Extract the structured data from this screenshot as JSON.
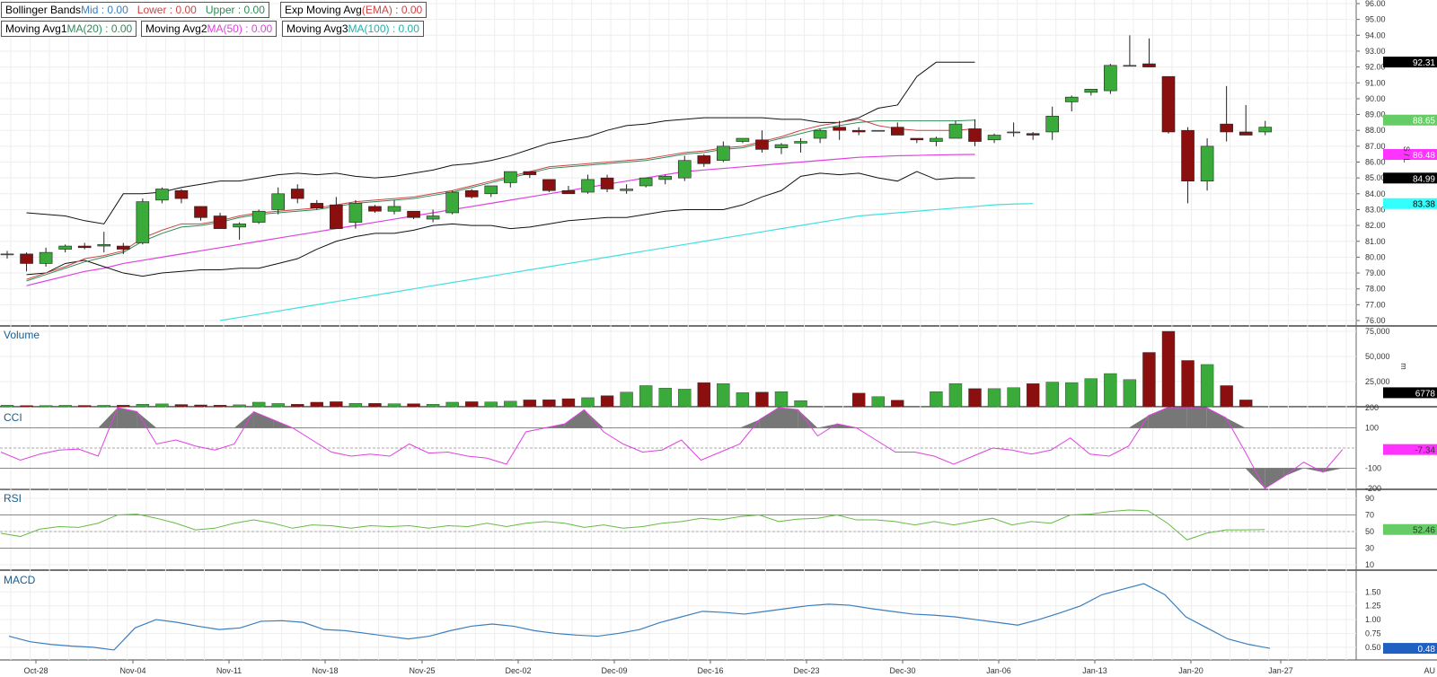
{
  "legends": {
    "bb": {
      "label": "Bollinger Bands",
      "mid": "Mid : 0.00",
      "lower": "Lower : 0.00",
      "upper": "Upper : 0.00"
    },
    "ema": {
      "label": "Exp Moving Avg",
      "tag": "(EMA) : 0.00"
    },
    "ma1": {
      "label": "Moving Avg1",
      "tag": "MA(20) : 0.00"
    },
    "ma2": {
      "label": "Moving Avg2",
      "tag": "MA(50) : 0.00"
    },
    "ma3": {
      "label": "Moving Avg3",
      "tag": "MA(100) : 0.00"
    }
  },
  "panes": {
    "volume": "Volume",
    "cci": "CCI",
    "rsi": "RSI",
    "macd": "MACD"
  },
  "axis_side_letters": {
    "price": "S / L",
    "volume": "m",
    "corner": "AU"
  },
  "colors": {
    "up": "#3aaa3a",
    "down": "#8b0f0f",
    "bb": "#111111",
    "ema": "#cc4444",
    "ma1": "#2e8b57",
    "ma2": "#e040e0",
    "ma3": "#40e0e0",
    "cci": "#e040e0",
    "rsi": "#66bb44",
    "macd": "#3a7ebf"
  },
  "value_tags": {
    "bb_upper": "92.31",
    "ma1": "88.65",
    "ma2": "86.48",
    "bb_lower": "84.99",
    "ma3": "83.38",
    "volume": "6778",
    "cci": "-7.34",
    "rsi": "52.46",
    "macd": "0.48"
  },
  "chart_data": {
    "type": "candlestick",
    "dates": [
      "Oct-28",
      "Nov-04",
      "Nov-11",
      "Nov-18",
      "Nov-25",
      "Dec-02",
      "Dec-09",
      "Dec-16",
      "Dec-23",
      "Dec-30",
      "Jan-06",
      "Jan-13",
      "Jan-20",
      "Jan-27"
    ],
    "price_axis": {
      "min": 76,
      "max": 96,
      "ticks": [
        "76.00",
        "77.00",
        "78.00",
        "79.00",
        "80.00",
        "81.00",
        "82.00",
        "83.00",
        "84.00",
        "85.00",
        "86.00",
        "87.00",
        "88.00",
        "89.00",
        "90.00",
        "91.00",
        "92.00",
        "93.00",
        "94.00",
        "95.00",
        "96.00"
      ]
    },
    "candles": [
      [
        80.2,
        80.4,
        79.9,
        80.2
      ],
      [
        80.2,
        80.3,
        79.1,
        79.6
      ],
      [
        79.6,
        80.6,
        79.4,
        80.3
      ],
      [
        80.5,
        80.8,
        80.3,
        80.7
      ],
      [
        80.7,
        80.9,
        80.5,
        80.6
      ],
      [
        80.7,
        81.6,
        80.3,
        80.8
      ],
      [
        80.7,
        80.9,
        80.2,
        80.5
      ],
      [
        80.9,
        83.7,
        80.8,
        83.5
      ],
      [
        83.6,
        84.4,
        83.4,
        84.3
      ],
      [
        84.2,
        84.3,
        83.4,
        83.7
      ],
      [
        83.2,
        83.2,
        82.3,
        82.5
      ],
      [
        82.6,
        82.8,
        81.9,
        81.8
      ],
      [
        81.9,
        82.2,
        81.1,
        82.1
      ],
      [
        82.2,
        83.0,
        82.1,
        82.9
      ],
      [
        83.0,
        84.4,
        82.7,
        84.0
      ],
      [
        84.3,
        84.6,
        83.4,
        83.7
      ],
      [
        83.4,
        83.6,
        83.0,
        83.1
      ],
      [
        83.3,
        83.8,
        81.8,
        81.8
      ],
      [
        82.2,
        83.6,
        81.8,
        83.4
      ],
      [
        83.2,
        83.3,
        82.8,
        82.9
      ],
      [
        82.9,
        83.6,
        82.7,
        83.2
      ],
      [
        82.9,
        82.9,
        82.4,
        82.5
      ],
      [
        82.4,
        83.0,
        82.2,
        82.6
      ],
      [
        82.8,
        84.2,
        82.7,
        84.1
      ],
      [
        84.2,
        84.3,
        83.7,
        83.8
      ],
      [
        84.0,
        84.4,
        83.8,
        84.5
      ],
      [
        84.7,
        85.3,
        84.4,
        85.4
      ],
      [
        85.4,
        85.4,
        85.0,
        85.2
      ],
      [
        84.9,
        84.9,
        84.1,
        84.2
      ],
      [
        84.2,
        84.5,
        84.0,
        84.0
      ],
      [
        84.1,
        85.2,
        84.0,
        84.9
      ],
      [
        85.0,
        85.2,
        84.1,
        84.3
      ],
      [
        84.2,
        84.6,
        84.0,
        84.3
      ],
      [
        84.5,
        85.0,
        84.4,
        85.0
      ],
      [
        84.9,
        85.2,
        84.6,
        85.1
      ],
      [
        85.0,
        86.4,
        84.8,
        86.1
      ],
      [
        86.4,
        86.5,
        85.7,
        85.9
      ],
      [
        86.1,
        87.3,
        86.0,
        87.0
      ],
      [
        87.3,
        87.5,
        87.2,
        87.5
      ],
      [
        87.4,
        88.0,
        86.6,
        86.8
      ],
      [
        86.9,
        87.2,
        86.5,
        87.1
      ],
      [
        87.2,
        87.5,
        86.6,
        87.3
      ],
      [
        87.5,
        88.1,
        87.2,
        88.0
      ],
      [
        88.2,
        88.6,
        87.4,
        88.0
      ],
      [
        88.0,
        88.2,
        87.7,
        87.9
      ],
      [
        88.0,
        88.0,
        88.0,
        88.0
      ],
      [
        88.2,
        88.5,
        87.7,
        87.7
      ],
      [
        87.5,
        87.5,
        87.2,
        87.4
      ],
      [
        87.3,
        87.6,
        87.0,
        87.5
      ],
      [
        87.5,
        88.6,
        87.6,
        88.4
      ],
      [
        88.1,
        88.7,
        87.0,
        87.3
      ],
      [
        87.4,
        87.8,
        87.2,
        87.7
      ],
      [
        87.9,
        88.5,
        87.6,
        87.9
      ],
      [
        87.8,
        87.9,
        87.4,
        87.7
      ],
      [
        87.9,
        89.5,
        87.4,
        88.9
      ],
      [
        89.8,
        90.2,
        89.2,
        90.1
      ],
      [
        90.4,
        90.6,
        90.2,
        90.6
      ],
      [
        90.5,
        92.2,
        90.3,
        92.1
      ],
      [
        92.1,
        94.0,
        92.1,
        92.1
      ],
      [
        92.2,
        93.8,
        92.0,
        92.0
      ],
      [
        91.4,
        91.4,
        87.8,
        87.9
      ],
      [
        88.0,
        88.2,
        83.4,
        84.8
      ],
      [
        84.8,
        87.5,
        84.2,
        87.0
      ],
      [
        88.4,
        90.8,
        87.3,
        87.9
      ],
      [
        87.9,
        89.6,
        87.8,
        87.7
      ],
      [
        87.9,
        88.6,
        87.7,
        88.2
      ]
    ],
    "skip_x": [
      45,
      49
    ],
    "bb_upper": [
      82.8,
      82.7,
      82.6,
      82.3,
      82.1,
      84.0,
      84.0,
      84.1,
      84.4,
      84.6,
      84.8,
      84.8,
      85.0,
      85.2,
      85.3,
      85.2,
      85.3,
      85.1,
      85.0,
      85.1,
      85.3,
      85.5,
      85.8,
      85.9,
      86.1,
      86.4,
      86.8,
      87.2,
      87.4,
      87.6,
      88.0,
      88.3,
      88.4,
      88.6,
      88.7,
      88.8,
      88.8,
      88.8,
      88.8,
      88.7,
      88.7,
      88.5,
      88.5,
      88.8,
      89.4,
      89.6,
      91.4,
      92.3,
      92.3,
      92.3
    ],
    "bb_lower": [
      78.9,
      79.0,
      79.6,
      79.8,
      79.4,
      79.0,
      78.8,
      79.0,
      79.1,
      79.2,
      79.2,
      79.3,
      79.3,
      79.6,
      79.9,
      80.5,
      81.0,
      81.3,
      81.5,
      81.5,
      81.7,
      82.0,
      82.1,
      82.0,
      82.0,
      81.8,
      81.9,
      82.1,
      82.3,
      82.4,
      82.5,
      82.5,
      82.7,
      82.9,
      83.0,
      83.0,
      83.0,
      83.3,
      83.8,
      84.2,
      85.1,
      85.3,
      85.2,
      85.3,
      85.0,
      84.8,
      85.4,
      84.9,
      85.0,
      85.0
    ],
    "ema": [
      78.6,
      79.0,
      79.4,
      79.9,
      80.1,
      80.4,
      81.2,
      81.7,
      82.1,
      82.1,
      82.3,
      82.6,
      82.8,
      82.9,
      83.0,
      83.1,
      83.3,
      83.5,
      83.6,
      83.7,
      83.8,
      84.0,
      84.2,
      84.5,
      84.8,
      85.1,
      85.4,
      85.7,
      85.8,
      85.9,
      86.0,
      86.1,
      86.2,
      86.4,
      86.6,
      86.7,
      86.9,
      87.0,
      87.3,
      87.6,
      88.0,
      88.3,
      88.5,
      88.7,
      88.3,
      88.1,
      88.0,
      88.0,
      88.0,
      88.1
    ],
    "ma1": [
      78.5,
      78.9,
      79.3,
      79.7,
      80.0,
      80.3,
      81.0,
      81.5,
      81.9,
      82.0,
      82.2,
      82.5,
      82.7,
      82.8,
      82.9,
      83.0,
      83.2,
      83.4,
      83.5,
      83.6,
      83.7,
      83.9,
      84.1,
      84.4,
      84.7,
      85.0,
      85.3,
      85.6,
      85.7,
      85.8,
      85.9,
      86.0,
      86.1,
      86.3,
      86.5,
      86.6,
      86.8,
      86.9,
      87.2,
      87.5,
      87.8,
      88.1,
      88.3,
      88.5,
      88.6,
      88.6,
      88.6,
      88.6,
      88.6,
      88.65
    ],
    "ma2": [
      78.2,
      78.5,
      78.8,
      79.1,
      79.3,
      79.6,
      79.8,
      80.0,
      80.2,
      80.4,
      80.6,
      80.8,
      81.0,
      81.2,
      81.4,
      81.6,
      81.8,
      82.0,
      82.2,
      82.4,
      82.6,
      82.8,
      83.0,
      83.2,
      83.4,
      83.6,
      83.8,
      84.0,
      84.2,
      84.4,
      84.6,
      84.8,
      85.0,
      85.2,
      85.4,
      85.5,
      85.6,
      85.7,
      85.8,
      85.9,
      86.0,
      86.1,
      86.2,
      86.3,
      86.35,
      86.4,
      86.42,
      86.45,
      86.47,
      86.48
    ],
    "ma3": [
      76.0,
      76.2,
      76.4,
      76.6,
      76.8,
      77.0,
      77.2,
      77.4,
      77.6,
      77.8,
      78.0,
      78.2,
      78.4,
      78.6,
      78.8,
      79.0,
      79.2,
      79.4,
      79.6,
      79.8,
      80.0,
      80.2,
      80.4,
      80.6,
      80.8,
      81.0,
      81.2,
      81.4,
      81.6,
      81.8,
      82.0,
      82.2,
      82.4,
      82.6,
      82.7,
      82.8,
      82.9,
      83.0,
      83.1,
      83.2,
      83.3,
      83.35,
      83.38
    ],
    "volume_axis": {
      "max": 75000,
      "ticks": [
        "25,000",
        "50,000",
        "75,000"
      ]
    },
    "volume": [
      1500,
      1200,
      1200,
      1400,
      1300,
      1400,
      1500,
      2500,
      2800,
      2200,
      1800,
      1600,
      1900,
      4500,
      3200,
      2500,
      4500,
      5000,
      3300,
      3400,
      3000,
      3000,
      2500,
      4500,
      5000,
      4800,
      5500,
      6800,
      7000,
      8000,
      9000,
      11000,
      14500,
      21000,
      18500,
      17500,
      24000,
      23000,
      14000,
      14500,
      15000,
      6000,
      0,
      0,
      13500,
      10000,
      6500,
      0,
      15000,
      23000,
      18000,
      18000,
      19000,
      23000,
      24500,
      24000,
      28000,
      33000,
      27000,
      54000,
      75000,
      46000,
      42000,
      21000,
      6778
    ],
    "cci_axis": {
      "ticks": [
        "-200",
        "-100",
        "100",
        "200"
      ]
    },
    "cci": [
      -20,
      -60,
      -30,
      -10,
      -5,
      -40,
      200,
      180,
      20,
      40,
      10,
      -10,
      20,
      180,
      140,
      100,
      40,
      -20,
      -40,
      -30,
      -40,
      20,
      -25,
      -20,
      -40,
      -50,
      -80,
      80,
      100,
      120,
      190,
      80,
      20,
      -20,
      -10,
      40,
      -60,
      -20,
      20,
      140,
      200,
      190,
      60,
      120,
      100,
      40,
      -20,
      -20,
      -40,
      -80,
      -40,
      0,
      -10,
      -30,
      -10,
      50,
      -30,
      -40,
      10,
      160,
      200,
      200,
      200,
      150,
      -20,
      -200,
      -140,
      -70,
      -120,
      -7.34
    ],
    "rsi_axis": {
      "ticks": [
        "10",
        "30",
        "50",
        "70",
        "90"
      ]
    },
    "rsi": [
      48,
      44,
      53,
      56,
      55,
      60,
      70,
      71,
      66,
      60,
      52,
      54,
      60,
      64,
      60,
      54,
      58,
      57,
      54,
      57,
      56,
      57,
      54,
      57,
      56,
      60,
      56,
      60,
      62,
      60,
      55,
      58,
      54,
      56,
      60,
      62,
      66,
      64,
      68,
      70,
      62,
      65,
      66,
      70,
      64,
      64,
      62,
      58,
      62,
      58,
      62,
      66,
      58,
      62,
      60,
      70,
      71,
      74,
      76,
      75,
      60,
      40,
      48,
      52,
      52,
      52.46
    ],
    "macd_axis": {
      "ticks": [
        "0.50",
        "0.75",
        "1.00",
        "1.25",
        "1.50"
      ]
    },
    "macd": [
      0.7,
      0.6,
      0.55,
      0.52,
      0.5,
      0.45,
      0.85,
      1.0,
      0.95,
      0.88,
      0.82,
      0.85,
      0.97,
      0.98,
      0.95,
      0.82,
      0.8,
      0.75,
      0.7,
      0.65,
      0.7,
      0.8,
      0.88,
      0.92,
      0.88,
      0.8,
      0.75,
      0.72,
      0.7,
      0.75,
      0.82,
      0.95,
      1.05,
      1.15,
      1.13,
      1.1,
      1.15,
      1.2,
      1.25,
      1.28,
      1.26,
      1.2,
      1.15,
      1.1,
      1.08,
      1.05,
      1.0,
      0.95,
      0.9,
      1.0,
      1.12,
      1.25,
      1.45,
      1.55,
      1.65,
      1.45,
      1.05,
      0.85,
      0.65,
      0.55,
      0.48
    ]
  }
}
